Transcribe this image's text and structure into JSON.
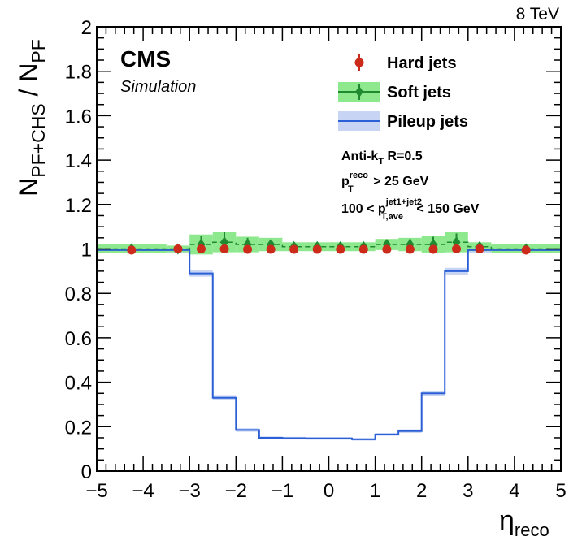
{
  "energy_label": "8 TeV",
  "cms": {
    "name": "CMS",
    "sub": "Simulation"
  },
  "axes": {
    "ylabel": {
      "base": "N",
      "sub1": "PF+CHS",
      "mid": " / N",
      "sub2": "PF"
    },
    "xlabel": {
      "base": "η",
      "sub": "reco"
    }
  },
  "info": {
    "line1": {
      "a": "Anti-k",
      "sub": "T",
      "b": " R=0.5"
    },
    "line2": {
      "a": "p",
      "sup": "reco",
      "sub": "T",
      "b": " > 25 GeV"
    },
    "line3": {
      "a": "100 < p",
      "sup": "jet1+jet2",
      "sub": "T,ave",
      "b": " < 150 GeV"
    }
  },
  "colors": {
    "hard": "#cc2a1a",
    "soft": "#1f8a30",
    "soft_band": "#8ee88e",
    "pileup": "#2a5fd6",
    "pileup_band": "#c8d4f4"
  },
  "chart_data": {
    "type": "scatter",
    "xlim": [
      -5,
      5
    ],
    "ylim": [
      0,
      2
    ],
    "x_ticks": [
      -5,
      -4,
      -3,
      -2,
      -1,
      0,
      1,
      2,
      3,
      4,
      5
    ],
    "y_ticks": [
      0,
      0.2,
      0.4,
      0.6,
      0.8,
      1,
      1.2,
      1.4,
      1.6,
      1.8,
      2
    ],
    "x_tick_labels": [
      "−5",
      "−4",
      "−3",
      "−2",
      "−1",
      "0",
      "1",
      "2",
      "3",
      "4",
      "5"
    ],
    "y_tick_labels": [
      "0",
      "0.2",
      "0.4",
      "0.6",
      "0.8",
      "1",
      "1.2",
      "1.4",
      "1.6",
      "1.8",
      "2"
    ],
    "bin_edges": [
      -5,
      -3.5,
      -3,
      -2.5,
      -2,
      -1.5,
      -1,
      -0.5,
      0,
      0.5,
      1,
      1.5,
      2,
      2.5,
      3,
      3.5,
      5
    ],
    "legend": {
      "position": "top-right"
    },
    "series": [
      {
        "name": "Hard jets",
        "style": "points",
        "values": [
          0.995,
          1.0,
          1.0,
          1.0,
          0.998,
          0.998,
          0.998,
          0.998,
          0.998,
          0.998,
          0.998,
          0.998,
          0.998,
          1.0,
          1.0,
          0.995
        ],
        "errors": [
          0.005,
          0.004,
          0.004,
          0.004,
          0.003,
          0.003,
          0.003,
          0.003,
          0.003,
          0.003,
          0.003,
          0.003,
          0.004,
          0.004,
          0.004,
          0.005
        ]
      },
      {
        "name": "Soft jets",
        "style": "band",
        "values": [
          1.0,
          1.0,
          1.02,
          1.03,
          1.02,
          1.02,
          1.01,
          1.01,
          1.01,
          1.01,
          1.02,
          1.02,
          1.02,
          1.03,
          1.01,
          1.0
        ],
        "band": [
          0.02,
          0.015,
          0.045,
          0.045,
          0.035,
          0.03,
          0.02,
          0.02,
          0.02,
          0.02,
          0.025,
          0.03,
          0.04,
          0.045,
          0.02,
          0.02
        ],
        "errors": [
          0.015,
          0.01,
          0.04,
          0.045,
          0.03,
          0.02,
          0.015,
          0.015,
          0.015,
          0.015,
          0.02,
          0.025,
          0.035,
          0.04,
          0.015,
          0.015
        ]
      },
      {
        "name": "Pileup jets",
        "style": "step",
        "values": [
          0.995,
          0.995,
          0.89,
          0.33,
          0.185,
          0.15,
          0.148,
          0.147,
          0.147,
          0.143,
          0.165,
          0.18,
          0.35,
          0.9,
          0.995,
          0.995
        ],
        "band": [
          0.012,
          0.012,
          0.015,
          0.012,
          0.008,
          0.006,
          0.006,
          0.006,
          0.006,
          0.006,
          0.006,
          0.008,
          0.012,
          0.015,
          0.012,
          0.012
        ]
      }
    ]
  }
}
